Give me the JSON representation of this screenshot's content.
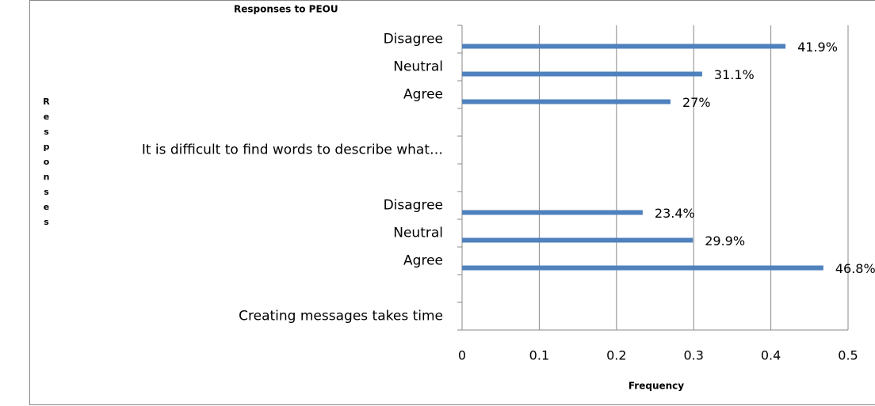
{
  "chart_data": {
    "type": "barh",
    "title": "Responses to PEOU",
    "x_label": "Frequency",
    "y_label": "Responses",
    "categories": [
      "Disagree",
      "Neutral",
      "Agree",
      null,
      "It is difficult to find words to describe what…",
      null,
      "Disagree",
      "Neutral",
      "Agree",
      null,
      "Creating messages takes time"
    ],
    "values": [
      0.419,
      0.311,
      0.27,
      null,
      null,
      null,
      0.234,
      0.299,
      0.468,
      null,
      null
    ],
    "value_labels": [
      "41.9%",
      "31.1%",
      "27%",
      null,
      null,
      null,
      "23.4%",
      "29.9%",
      "46.8%",
      null,
      null
    ],
    "color": "#4f81bd",
    "xlim": [
      0,
      0.5
    ],
    "xticks": [
      0,
      0.1,
      0.2,
      0.3,
      0.4,
      0.5
    ],
    "grid": true
  }
}
